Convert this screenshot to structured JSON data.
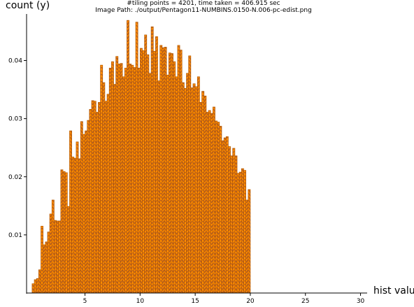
{
  "chart_data": {
    "type": "bar",
    "title_lines": [
      "#tiling points = 4201, time taken = 406.915 sec",
      "Image Path: ./output/Pentagon11-NUMBINS.0150-N.006-pc-edist.png"
    ],
    "xlabel": "hist value",
    "ylabel": "count (y)",
    "xlim": [
      -0.3,
      30.6
    ],
    "ylim": [
      0,
      0.048
    ],
    "bin_width": 0.2,
    "bin_start": 0.2,
    "xticks": [
      5,
      10,
      15,
      20,
      25,
      30
    ],
    "yticks": [
      0.01,
      0.02,
      0.03,
      0.04
    ],
    "ytick_labels": [
      "0.01",
      "0.02",
      "0.03",
      "0.04"
    ],
    "bar_color": "#ff8c00",
    "bar_edge_color": "#b35900",
    "hatch_color": "#a0522d",
    "values": [
      0.0016,
      0.0023,
      0.0025,
      0.004,
      0.0115,
      0.0083,
      0.0088,
      0.0105,
      0.0136,
      0.016,
      0.0125,
      0.0124,
      0.0124,
      0.0212,
      0.0209,
      0.0207,
      0.0149,
      0.0279,
      0.0234,
      0.0232,
      0.026,
      0.0231,
      0.0295,
      0.0273,
      0.0279,
      0.0297,
      0.0316,
      0.0331,
      0.033,
      0.0311,
      0.0328,
      0.0392,
      0.0362,
      0.033,
      0.0342,
      0.0387,
      0.0398,
      0.0359,
      0.0407,
      0.0394,
      0.0395,
      0.0372,
      0.0387,
      0.0469,
      0.0394,
      0.0392,
      0.0388,
      0.0466,
      0.0387,
      0.0421,
      0.0417,
      0.0444,
      0.041,
      0.0378,
      0.0458,
      0.0416,
      0.0441,
      0.0365,
      0.0426,
      0.0422,
      0.0423,
      0.0375,
      0.0413,
      0.0412,
      0.0398,
      0.0372,
      0.0426,
      0.0418,
      0.0362,
      0.0352,
      0.0378,
      0.0408,
      0.0353,
      0.036,
      0.0355,
      0.0372,
      0.0328,
      0.0347,
      0.0339,
      0.0311,
      0.0314,
      0.0309,
      0.032,
      0.0296,
      0.0294,
      0.0287,
      0.0262,
      0.0267,
      0.0269,
      0.0252,
      0.0236,
      0.0249,
      0.0236,
      0.0206,
      0.0208,
      0.0214,
      0.0211,
      0.016,
      0.0178
    ]
  }
}
